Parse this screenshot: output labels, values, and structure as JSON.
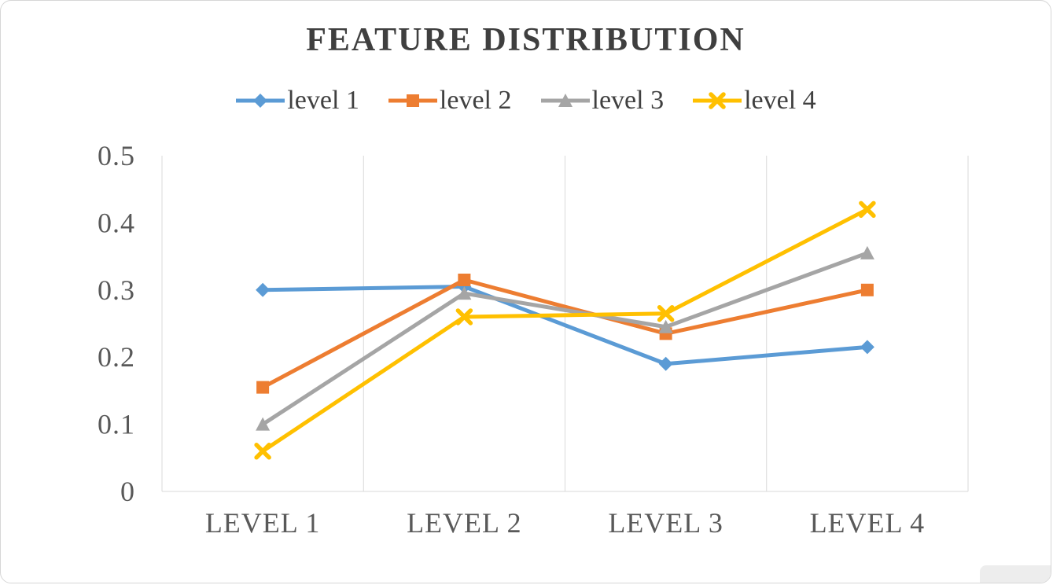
{
  "chart_data": {
    "type": "line",
    "title": "FEATURE DISTRIBUTION",
    "categories": [
      "LEVEL 1",
      "LEVEL 2",
      "LEVEL 3",
      "LEVEL 4"
    ],
    "series": [
      {
        "name": "level 1",
        "color": "#5B9BD5",
        "marker": "diamond",
        "values": [
          0.3,
          0.305,
          0.19,
          0.215
        ]
      },
      {
        "name": "level 2",
        "color": "#ED7D31",
        "marker": "square",
        "values": [
          0.155,
          0.315,
          0.235,
          0.3
        ]
      },
      {
        "name": "level 3",
        "color": "#A5A5A5",
        "marker": "triangle",
        "values": [
          0.1,
          0.295,
          0.245,
          0.355
        ]
      },
      {
        "name": "level 4",
        "color": "#FFC000",
        "marker": "x",
        "values": [
          0.06,
          0.26,
          0.265,
          0.42
        ]
      }
    ],
    "y_ticks": [
      0,
      0.1,
      0.2,
      0.3,
      0.4,
      0.5
    ],
    "y_tick_labels": [
      "0",
      "0.1",
      "0.2",
      "0.3",
      "0.4",
      "0.5"
    ],
    "ylim": [
      0,
      0.5
    ],
    "grid": "vertical",
    "legend_position": "top",
    "axis_label_color": "#595959",
    "gridline_color": "#D9D9D9"
  }
}
